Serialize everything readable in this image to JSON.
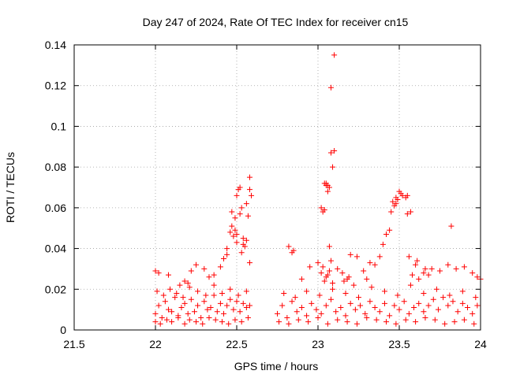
{
  "chart_data": {
    "type": "scatter",
    "title": "Day 247 of 2024, Rate Of TEC Index for receiver cn15",
    "xlabel": "GPS time / hours",
    "ylabel": "ROTI / TECUs",
    "xlim": [
      21.5,
      24
    ],
    "ylim": [
      0,
      0.14
    ],
    "xticks": [
      21.5,
      22,
      22.5,
      23,
      23.5,
      24
    ],
    "xtick_labels": [
      "21.5",
      "22",
      "22.5",
      "23",
      "23.5",
      "24"
    ],
    "yticks": [
      0,
      0.02,
      0.04,
      0.06,
      0.08,
      0.1,
      0.12,
      0.14
    ],
    "ytick_labels": [
      "0",
      "0.02",
      "0.04",
      "0.06",
      "0.08",
      "0.1",
      "0.12",
      "0.14"
    ],
    "grid": true,
    "marker": "+",
    "marker_color": "#ff0000",
    "series": [
      {
        "name": "cn15",
        "x": [
          22.0,
          22.02,
          22.04,
          22.06,
          22.08,
          22.1,
          22.12,
          22.14,
          22.16,
          22.18,
          22.2,
          22.22,
          22.24,
          22.26,
          22.28,
          22.3,
          22.32,
          22.34,
          22.36,
          22.38,
          22.4,
          22.42,
          22.44,
          22.46,
          22.48,
          22.5,
          22.52,
          22.54,
          22.56,
          22.58,
          22.0,
          22.03,
          22.07,
          22.1,
          22.14,
          22.18,
          22.21,
          22.25,
          22.29,
          22.33,
          22.37,
          22.41,
          22.45,
          22.49,
          22.53,
          22.57,
          22.01,
          22.05,
          22.09,
          22.13,
          22.17,
          22.21,
          22.26,
          22.31,
          22.36,
          22.41,
          22.46,
          22.51,
          22.56,
          22.0,
          22.02,
          22.08,
          22.15,
          22.18,
          22.2,
          22.22,
          22.25,
          22.3,
          22.33,
          22.36,
          22.4,
          22.44,
          22.46,
          22.47,
          22.48,
          22.49,
          22.5,
          22.5,
          22.51,
          22.52,
          22.53,
          22.54,
          22.55,
          22.56,
          22.57,
          22.58,
          22.47,
          22.49,
          22.5,
          22.52,
          22.54,
          22.56,
          22.58,
          22.42,
          22.44,
          22.59,
          22.58,
          22.53,
          22.75,
          22.78,
          22.81,
          22.84,
          22.87,
          22.9,
          22.93,
          22.96,
          22.99,
          23.02,
          23.05,
          23.08,
          23.11,
          23.14,
          23.17,
          23.2,
          23.23,
          23.26,
          23.29,
          23.32,
          23.35,
          23.38,
          23.41,
          23.44,
          23.47,
          23.5,
          23.53,
          23.56,
          23.59,
          23.62,
          23.65,
          23.68,
          23.71,
          23.74,
          23.77,
          23.8,
          23.83,
          23.86,
          23.89,
          23.92,
          23.95,
          23.98,
          22.76,
          22.82,
          22.88,
          22.94,
          23.0,
          23.06,
          23.12,
          23.18,
          23.24,
          23.3,
          23.36,
          23.42,
          23.48,
          23.54,
          23.6,
          23.66,
          23.72,
          23.78,
          23.84,
          23.9,
          23.96,
          22.79,
          22.86,
          22.93,
          23.01,
          23.09,
          23.17,
          23.25,
          23.33,
          23.41,
          23.49,
          23.57,
          23.65,
          23.73,
          23.81,
          23.89,
          23.97,
          22.85,
          22.9,
          22.95,
          23.0,
          23.02,
          23.03,
          23.04,
          23.05,
          23.06,
          23.07,
          23.08,
          23.1,
          23.12,
          23.15,
          23.18,
          23.2,
          23.24,
          23.28,
          23.32,
          23.35,
          23.38,
          23.4,
          23.42,
          23.44,
          23.45,
          23.46,
          23.47,
          23.48,
          23.49,
          23.5,
          23.52,
          23.54,
          23.55,
          23.56,
          23.58,
          23.6,
          23.62,
          23.65,
          23.68,
          23.7,
          23.75,
          23.8,
          23.85,
          23.9,
          23.95,
          23.98,
          24.0,
          23.82,
          23.04,
          23.05,
          23.06,
          23.07,
          23.08,
          23.09,
          23.1,
          23.08,
          23.07,
          23.05,
          23.03,
          23.02,
          23.04,
          23.06,
          23.09,
          22.82,
          22.84,
          23.16,
          23.19,
          23.22,
          23.3,
          23.48,
          23.51,
          23.55,
          23.57,
          23.61,
          23.66
        ],
        "y": [
          0.008,
          0.012,
          0.006,
          0.014,
          0.01,
          0.009,
          0.016,
          0.007,
          0.011,
          0.013,
          0.008,
          0.015,
          0.009,
          0.012,
          0.006,
          0.014,
          0.01,
          0.011,
          0.017,
          0.009,
          0.013,
          0.008,
          0.012,
          0.015,
          0.01,
          0.014,
          0.009,
          0.013,
          0.011,
          0.012,
          0.004,
          0.003,
          0.005,
          0.004,
          0.006,
          0.003,
          0.005,
          0.004,
          0.003,
          0.006,
          0.005,
          0.004,
          0.003,
          0.005,
          0.004,
          0.006,
          0.019,
          0.017,
          0.02,
          0.018,
          0.016,
          0.021,
          0.019,
          0.017,
          0.022,
          0.018,
          0.02,
          0.017,
          0.019,
          0.029,
          0.028,
          0.027,
          0.022,
          0.024,
          0.023,
          0.029,
          0.032,
          0.03,
          0.026,
          0.027,
          0.031,
          0.04,
          0.048,
          0.058,
          0.046,
          0.055,
          0.047,
          0.066,
          0.069,
          0.07,
          0.06,
          0.045,
          0.041,
          0.044,
          0.056,
          0.075,
          0.051,
          0.049,
          0.043,
          0.057,
          0.042,
          0.062,
          0.069,
          0.035,
          0.037,
          0.066,
          0.033,
          0.038,
          0.008,
          0.012,
          0.006,
          0.014,
          0.009,
          0.011,
          0.007,
          0.013,
          0.01,
          0.008,
          0.012,
          0.015,
          0.009,
          0.011,
          0.007,
          0.013,
          0.01,
          0.012,
          0.008,
          0.014,
          0.011,
          0.009,
          0.013,
          0.007,
          0.012,
          0.01,
          0.014,
          0.008,
          0.011,
          0.013,
          0.009,
          0.012,
          0.015,
          0.01,
          0.016,
          0.012,
          0.014,
          0.009,
          0.013,
          0.011,
          0.008,
          0.012,
          0.004,
          0.003,
          0.005,
          0.004,
          0.006,
          0.003,
          0.005,
          0.004,
          0.003,
          0.006,
          0.005,
          0.004,
          0.003,
          0.005,
          0.004,
          0.006,
          0.005,
          0.003,
          0.004,
          0.005,
          0.003,
          0.018,
          0.016,
          0.019,
          0.017,
          0.02,
          0.018,
          0.016,
          0.021,
          0.019,
          0.017,
          0.022,
          0.018,
          0.02,
          0.017,
          0.019,
          0.016,
          0.039,
          0.025,
          0.031,
          0.033,
          0.06,
          0.058,
          0.072,
          0.071,
          0.068,
          0.041,
          0.087,
          0.135,
          0.03,
          0.028,
          0.025,
          0.037,
          0.036,
          0.029,
          0.033,
          0.032,
          0.036,
          0.042,
          0.047,
          0.049,
          0.058,
          0.063,
          0.061,
          0.065,
          0.064,
          0.068,
          0.066,
          0.065,
          0.057,
          0.036,
          0.027,
          0.032,
          0.025,
          0.028,
          0.027,
          0.03,
          0.029,
          0.032,
          0.03,
          0.031,
          0.028,
          0.026,
          0.025,
          0.051,
          0.059,
          0.072,
          0.071,
          0.07,
          0.119,
          0.08,
          0.088,
          0.034,
          0.029,
          0.026,
          0.031,
          0.028,
          0.024,
          0.027,
          0.023,
          0.041,
          0.038,
          0.024,
          0.026,
          0.022,
          0.025,
          0.062,
          0.067,
          0.066,
          0.058,
          0.034,
          0.03
        ]
      }
    ]
  }
}
